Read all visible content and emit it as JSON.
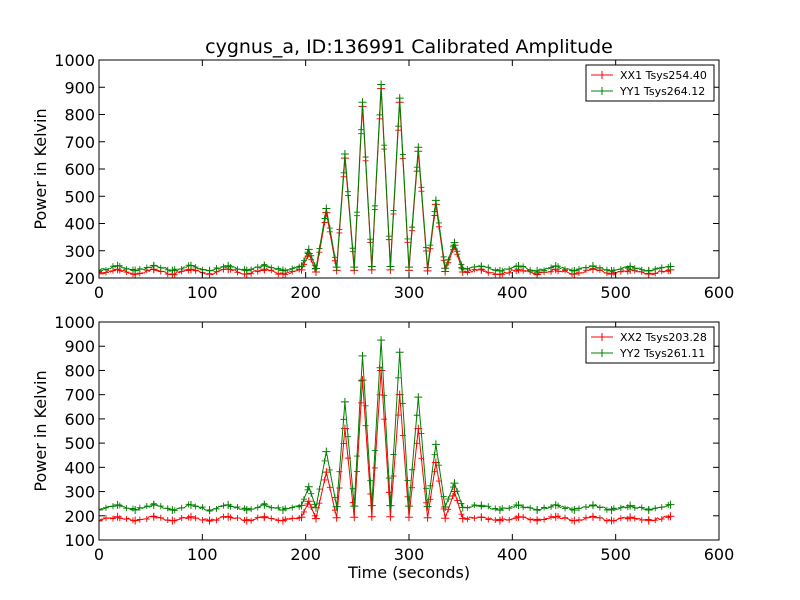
{
  "chart_data": [
    {
      "type": "line",
      "title": "cygnus_a, ID:136991 Calibrated Amplitude",
      "xlabel": "",
      "ylabel": "Power in Kelvin",
      "xlim": [
        0,
        600
      ],
      "ylim": [
        200,
        1000
      ],
      "xticks": [
        "0",
        "100",
        "200",
        "300",
        "400",
        "500",
        "600"
      ],
      "yticks": [
        "200",
        "300",
        "400",
        "500",
        "600",
        "700",
        "800",
        "900",
        "1000"
      ],
      "grid": false,
      "legend_position": "top-right",
      "series": [
        {
          "name": "XX1 Tsys254.40",
          "color": "#ff0000",
          "baseline": 222,
          "x": [
            0,
            18,
            35,
            53,
            71,
            89,
            107,
            125,
            143,
            160,
            178,
            196,
            203,
            210,
            220,
            230,
            238,
            247,
            255,
            264,
            273,
            282,
            291,
            300,
            309,
            318,
            326,
            335,
            344,
            352,
            370,
            388,
            406,
            424,
            442,
            460,
            478,
            496,
            514,
            532,
            553
          ],
          "y": [
            215,
            232,
            214,
            232,
            214,
            232,
            214,
            232,
            214,
            232,
            214,
            230,
            290,
            222,
            440,
            228,
            640,
            228,
            830,
            230,
            895,
            230,
            845,
            228,
            665,
            226,
            470,
            224,
            320,
            222,
            230,
            214,
            232,
            214,
            232,
            214,
            232,
            214,
            230,
            214,
            230
          ]
        },
        {
          "name": "YY1 Tsys264.12",
          "color": "#008000",
          "baseline": 232,
          "x": [
            0,
            18,
            35,
            53,
            71,
            89,
            107,
            125,
            143,
            160,
            178,
            196,
            203,
            210,
            220,
            230,
            238,
            247,
            255,
            264,
            273,
            282,
            291,
            300,
            309,
            318,
            326,
            335,
            344,
            352,
            370,
            388,
            406,
            424,
            442,
            460,
            478,
            496,
            514,
            532,
            553
          ],
          "y": [
            228,
            245,
            227,
            245,
            227,
            245,
            227,
            245,
            227,
            245,
            227,
            243,
            305,
            235,
            455,
            240,
            655,
            240,
            845,
            242,
            910,
            242,
            860,
            240,
            680,
            238,
            485,
            236,
            330,
            234,
            243,
            226,
            244,
            226,
            244,
            226,
            244,
            226,
            242,
            226,
            242
          ]
        }
      ]
    },
    {
      "type": "line",
      "title": "",
      "xlabel": "Time (seconds)",
      "ylabel": "Power in Kelvin",
      "xlim": [
        0,
        600
      ],
      "ylim": [
        100,
        1000
      ],
      "xticks": [
        "0",
        "100",
        "200",
        "300",
        "400",
        "500",
        "600"
      ],
      "yticks": [
        "100",
        "200",
        "300",
        "400",
        "500",
        "600",
        "700",
        "800",
        "900",
        "1000"
      ],
      "grid": false,
      "legend_position": "top-right",
      "series": [
        {
          "name": "XX2 Tsys203.28",
          "color": "#ff0000",
          "baseline": 188,
          "x": [
            0,
            18,
            35,
            53,
            71,
            89,
            107,
            125,
            143,
            160,
            178,
            196,
            203,
            210,
            220,
            230,
            238,
            247,
            255,
            264,
            273,
            282,
            291,
            300,
            309,
            318,
            326,
            335,
            344,
            352,
            370,
            388,
            406,
            424,
            442,
            460,
            478,
            496,
            514,
            532,
            553
          ],
          "y": [
            182,
            196,
            180,
            196,
            180,
            196,
            180,
            196,
            180,
            196,
            180,
            194,
            260,
            188,
            380,
            192,
            560,
            194,
            760,
            196,
            800,
            196,
            700,
            194,
            560,
            192,
            420,
            190,
            300,
            188,
            194,
            180,
            196,
            180,
            196,
            180,
            196,
            180,
            194,
            180,
            198
          ]
        },
        {
          "name": "YY2 Tsys261.11",
          "color": "#008000",
          "baseline": 232,
          "x": [
            0,
            18,
            35,
            53,
            71,
            89,
            107,
            125,
            143,
            160,
            178,
            196,
            203,
            210,
            220,
            230,
            238,
            247,
            255,
            264,
            273,
            282,
            291,
            300,
            309,
            318,
            326,
            335,
            344,
            352,
            370,
            388,
            406,
            424,
            442,
            460,
            478,
            496,
            514,
            532,
            553
          ],
          "y": [
            225,
            245,
            224,
            245,
            224,
            245,
            224,
            245,
            224,
            245,
            224,
            243,
            320,
            233,
            465,
            238,
            670,
            240,
            860,
            242,
            925,
            242,
            875,
            240,
            690,
            238,
            495,
            236,
            335,
            234,
            243,
            224,
            244,
            224,
            244,
            224,
            244,
            224,
            242,
            224,
            246
          ]
        }
      ]
    }
  ]
}
